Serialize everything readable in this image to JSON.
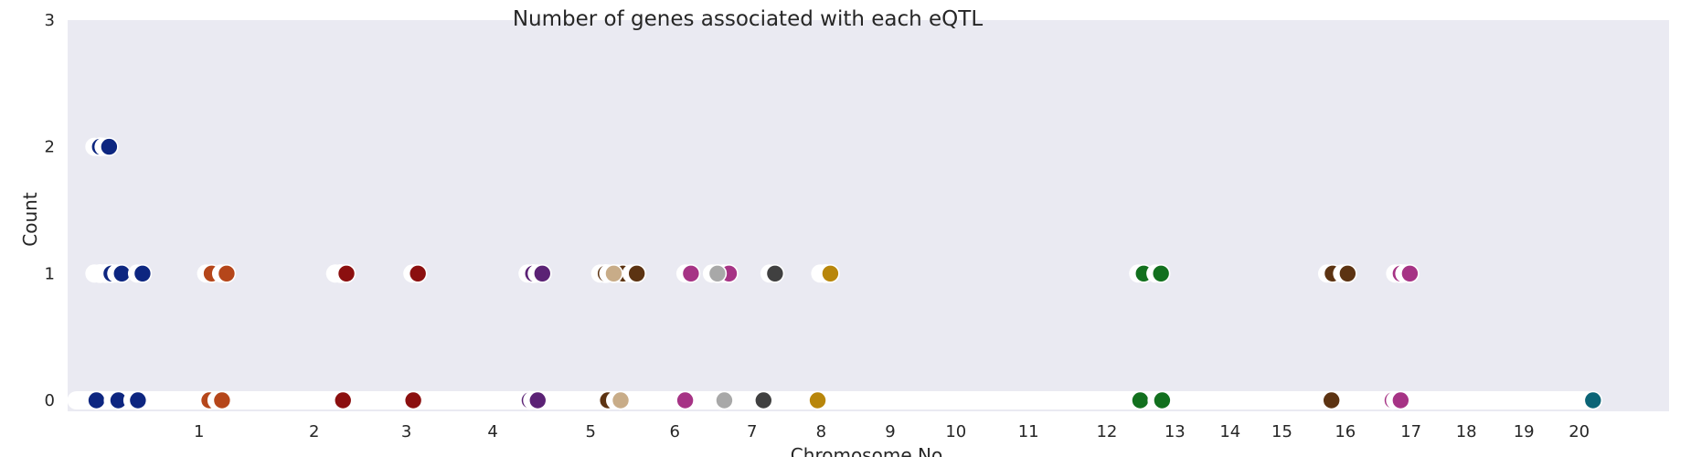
{
  "chart_data": {
    "type": "scatter",
    "title": "Number of genes associated with each eQTL",
    "xlabel": "Chromosome No.",
    "ylabel": "Count",
    "ylim": [
      -0.1,
      3
    ],
    "yticks": [
      0,
      1,
      2,
      3
    ],
    "grid": false,
    "background_color": "#eaeaf2",
    "xticks": [
      {
        "label": "1",
        "x": 1.0
      },
      {
        "label": "2",
        "x": 2.0
      },
      {
        "label": "3",
        "x": 2.8
      },
      {
        "label": "4",
        "x": 3.55
      },
      {
        "label": "5",
        "x": 4.4
      },
      {
        "label": "6",
        "x": 5.13
      },
      {
        "label": "7",
        "x": 5.8
      },
      {
        "label": "8",
        "x": 6.4
      },
      {
        "label": "9",
        "x": 7.0
      },
      {
        "label": "10",
        "x": 7.57
      },
      {
        "label": "11",
        "x": 8.2
      },
      {
        "label": "12",
        "x": 8.88
      },
      {
        "label": "13",
        "x": 9.47
      },
      {
        "label": "14",
        "x": 9.95
      },
      {
        "label": "15",
        "x": 10.4
      },
      {
        "label": "16",
        "x": 10.95
      },
      {
        "label": "17",
        "x": 11.52
      },
      {
        "label": "18",
        "x": 12.0
      },
      {
        "label": "19",
        "x": 12.5
      },
      {
        "label": "20",
        "x": 12.98
      }
    ],
    "xlim": [
      -0.14,
      13.76
    ],
    "series": [
      {
        "color": "#0d2680",
        "points": [
          [
            0.14,
            2
          ],
          [
            0.22,
            2
          ],
          [
            0.14,
            1
          ],
          [
            0.19,
            1
          ],
          [
            0.24,
            1
          ],
          [
            0.33,
            1
          ],
          [
            0.51,
            1
          ],
          [
            0.11,
            0
          ],
          [
            0.3,
            0
          ],
          [
            0.47,
            0
          ]
        ]
      },
      {
        "color": "#b5461a",
        "points": [
          [
            1.11,
            1
          ],
          [
            1.24,
            1
          ],
          [
            1.09,
            0
          ],
          [
            1.2,
            0
          ]
        ]
      },
      {
        "color": "#8b0f0f",
        "points": [
          [
            2.23,
            1
          ],
          [
            2.28,
            1
          ],
          [
            2.25,
            0
          ],
          [
            2.9,
            1
          ],
          [
            2.86,
            0
          ]
        ]
      },
      {
        "color": "#5b2275",
        "points": [
          [
            3.9,
            1
          ],
          [
            3.98,
            1
          ],
          [
            3.87,
            0
          ],
          [
            3.94,
            0
          ]
        ]
      },
      {
        "color": "#5c3312",
        "points": [
          [
            4.53,
            1
          ],
          [
            4.68,
            1
          ],
          [
            4.8,
            1
          ],
          [
            4.55,
            0
          ]
        ]
      },
      {
        "color": "#c8ac88",
        "points": [
          [
            4.6,
            1
          ],
          [
            4.66,
            0
          ]
        ]
      },
      {
        "color": "#a63385",
        "points": [
          [
            5.27,
            1
          ],
          [
            5.6,
            1
          ],
          [
            5.22,
            0
          ],
          [
            5.53,
            0
          ]
        ]
      },
      {
        "color": "#a8a8a8",
        "points": [
          [
            5.5,
            1
          ],
          [
            5.56,
            0
          ]
        ]
      },
      {
        "color": "#404040",
        "points": [
          [
            6.0,
            1
          ],
          [
            5.9,
            0
          ]
        ]
      },
      {
        "color": "#b8860b",
        "points": [
          [
            6.44,
            1
          ],
          [
            6.48,
            1
          ],
          [
            6.37,
            0
          ]
        ]
      },
      {
        "color": "#12701e",
        "points": [
          [
            9.2,
            1
          ],
          [
            9.35,
            1
          ],
          [
            9.17,
            0
          ],
          [
            9.36,
            0
          ]
        ]
      },
      {
        "color": "#5c3312",
        "points": [
          [
            10.84,
            1
          ],
          [
            10.97,
            1
          ],
          [
            10.83,
            0
          ]
        ]
      },
      {
        "color": "#a63385",
        "points": [
          [
            11.43,
            1
          ],
          [
            11.51,
            1
          ],
          [
            11.36,
            0
          ],
          [
            11.43,
            0
          ]
        ]
      },
      {
        "color": "#0b6476",
        "points": [
          [
            13.1,
            0
          ]
        ]
      }
    ]
  }
}
